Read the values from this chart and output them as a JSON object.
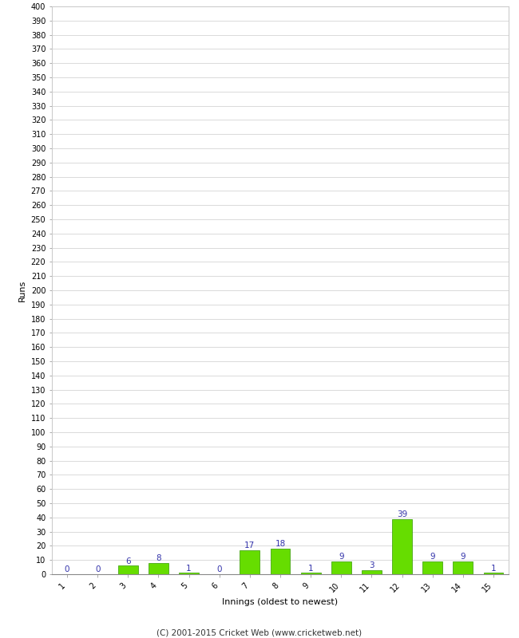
{
  "innings": [
    1,
    2,
    3,
    4,
    5,
    6,
    7,
    8,
    9,
    10,
    11,
    12,
    13,
    14,
    15
  ],
  "runs": [
    0,
    0,
    6,
    8,
    1,
    0,
    17,
    18,
    1,
    9,
    3,
    39,
    9,
    9,
    1
  ],
  "bar_color": "#66dd00",
  "bar_edge_color": "#339900",
  "ylabel": "Runs",
  "xlabel": "Innings (oldest to newest)",
  "label_color": "#3333aa",
  "ytick_step": 10,
  "ymax": 400,
  "background_color": "#ffffff",
  "grid_color": "#cccccc",
  "footer": "(C) 2001-2015 Cricket Web (www.cricketweb.net)",
  "label_fontsize": 7.5,
  "tick_fontsize": 7,
  "ylabel_fontsize": 8,
  "xlabel_fontsize": 8,
  "footer_fontsize": 7.5
}
